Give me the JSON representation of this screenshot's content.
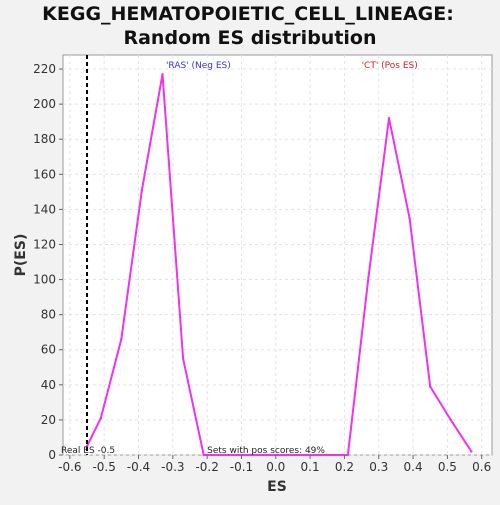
{
  "chart_data": {
    "type": "line",
    "title_line1": "KEGG_HEMATOPOIETIC_CELL_LINEAGE:",
    "title_line2": "Random ES distribution",
    "xlabel": "ES",
    "ylabel": "P(ES)",
    "xlim": [
      -0.62,
      0.63
    ],
    "ylim": [
      0,
      228
    ],
    "x_ticks": [
      -0.6,
      -0.5,
      -0.4,
      -0.3,
      -0.2,
      -0.1,
      0.0,
      0.1,
      0.2,
      0.3,
      0.4,
      0.5,
      0.6
    ],
    "x_tick_labels": [
      "-0.6",
      "-0.5",
      "-0.4",
      "-0.3",
      "-0.2",
      "-0.1",
      "0.0",
      "0.1",
      "0.2",
      "0.3",
      "0.4",
      "0.5",
      "0.6"
    ],
    "y_ticks": [
      0,
      20,
      40,
      60,
      80,
      100,
      120,
      140,
      160,
      180,
      200,
      220
    ],
    "y_tick_labels": [
      "0",
      "20",
      "40",
      "60",
      "80",
      "100",
      "120",
      "140",
      "160",
      "180",
      "200",
      "220"
    ],
    "grid": true,
    "series": [
      {
        "color": "#ee33ee",
        "points": [
          [
            -0.55,
            5
          ],
          [
            -0.51,
            21
          ],
          [
            -0.45,
            66
          ],
          [
            -0.39,
            151
          ],
          [
            -0.33,
            217
          ],
          [
            -0.27,
            55
          ],
          [
            -0.21,
            0
          ],
          [
            -0.15,
            0
          ],
          [
            -0.09,
            0
          ],
          [
            -0.03,
            0
          ],
          [
            0.03,
            0
          ],
          [
            0.09,
            0
          ],
          [
            0.15,
            0
          ],
          [
            0.21,
            0
          ],
          [
            0.27,
            101
          ],
          [
            0.33,
            192
          ],
          [
            0.39,
            135
          ],
          [
            0.45,
            39
          ],
          [
            0.51,
            20
          ],
          [
            0.57,
            2
          ]
        ]
      }
    ],
    "real_es": {
      "value": -0.55,
      "label": "Real ES -0.5",
      "style": "dashed",
      "color": "#000000"
    },
    "annotations": [
      {
        "text": "'RAS' (Neg ES)",
        "color": "#3333cc",
        "x": -0.32
      },
      {
        "text": "'CT' (Pos ES)",
        "color": "#cc2222",
        "x": 0.25
      }
    ],
    "footer_note": "Sets with pos scores: 49%"
  }
}
